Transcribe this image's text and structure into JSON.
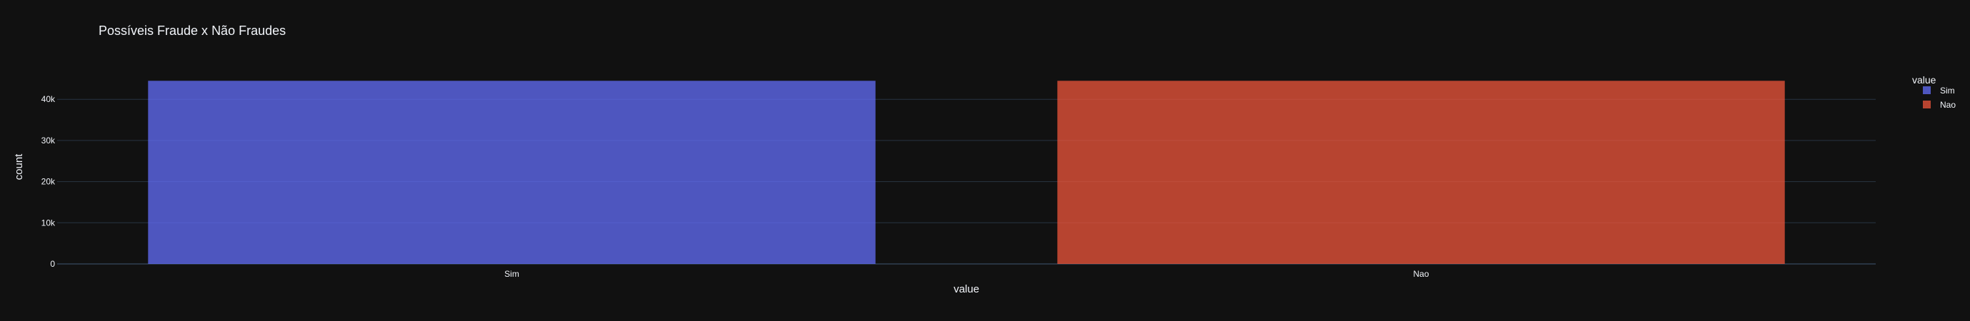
{
  "chart_data": {
    "type": "bar",
    "title": "Possíveis Fraude x Não Fraudes",
    "xlabel": "value",
    "ylabel": "count",
    "categories": [
      "Sim",
      "Nao"
    ],
    "series": [
      {
        "name": "Sim",
        "category": "Sim",
        "value": 44500,
        "color": "#636efa"
      },
      {
        "name": "Nao",
        "category": "Nao",
        "value": 44500,
        "color": "#ef553b"
      }
    ],
    "ylim": [
      0,
      46800
    ],
    "yticks": [
      0,
      10000,
      20000,
      30000,
      40000
    ],
    "ytick_labels": [
      "0",
      "10k",
      "20k",
      "30k",
      "40k"
    ],
    "grid": true,
    "legend": {
      "title": "value",
      "placement": "top-right"
    },
    "bar_opacity": 0.75
  },
  "colors": {
    "background": "#111111",
    "grid": "#283442",
    "zeroline": "#283442",
    "text": "#f2f5fa"
  }
}
